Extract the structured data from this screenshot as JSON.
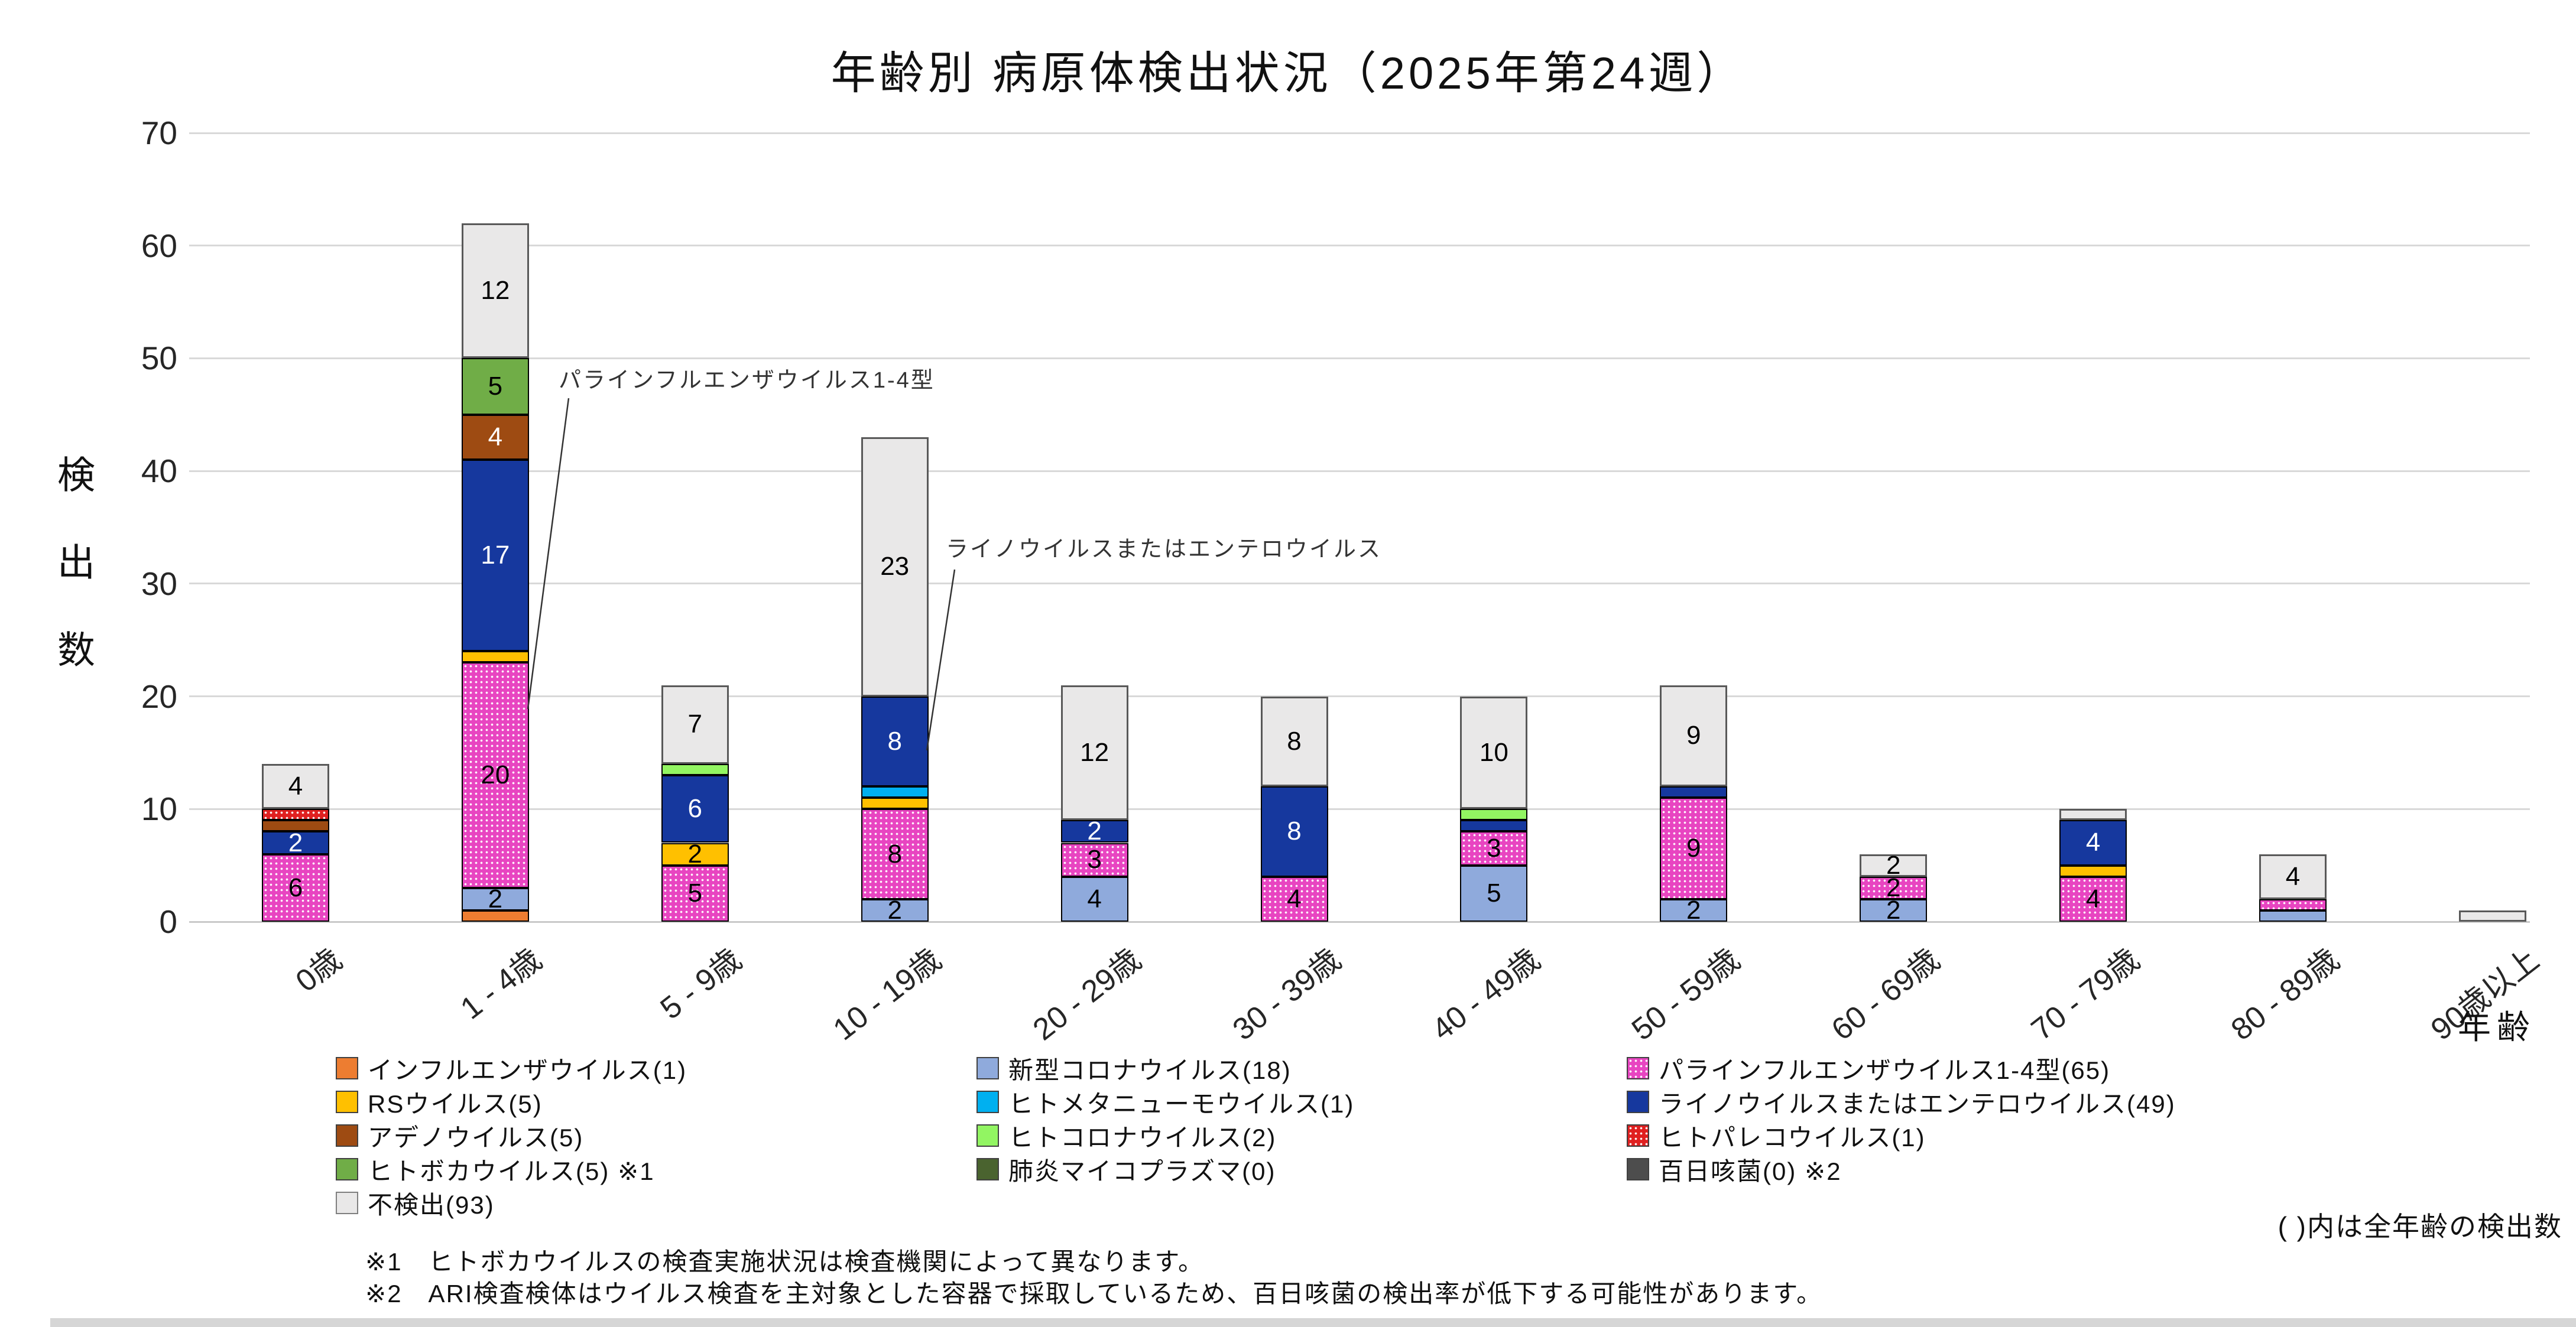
{
  "title": "年齢別 病原体検出状況（2025年第24週）",
  "chart_data": {
    "type": "bar",
    "stacked": true,
    "title": "年齢別 病原体検出状況（2025年第24週）",
    "ylabel": "検出数",
    "xlabel": "年齢",
    "ylim": [
      0,
      70
    ],
    "yticks": [
      0,
      10,
      20,
      30,
      40,
      50,
      60,
      70
    ],
    "grid": true,
    "legend_position": "bottom",
    "categories": [
      "0歳",
      "1 - 4歳",
      "5 - 9歳",
      "10 - 19歳",
      "20 - 29歳",
      "30 - 39歳",
      "40 - 49歳",
      "50 - 59歳",
      "60 - 69歳",
      "70 - 79歳",
      "80 - 89歳",
      "90歳以上"
    ],
    "series": [
      {
        "name": "インフルエンザウイルス",
        "total": 1,
        "legend_label": "インフルエンザウイルス(1)",
        "color": "#ED7D31",
        "border": "#000000",
        "pattern": "none",
        "label_color": "#000000",
        "values": [
          0,
          1,
          0,
          0,
          0,
          0,
          0,
          0,
          0,
          0,
          0,
          0
        ]
      },
      {
        "name": "新型コロナウイルス",
        "total": 18,
        "legend_label": "新型コロナウイルス(18)",
        "color": "#8FAADC",
        "border": "#000000",
        "pattern": "none",
        "label_color": "#000000",
        "values": [
          0,
          2,
          0,
          2,
          4,
          0,
          5,
          2,
          2,
          0,
          1,
          0
        ]
      },
      {
        "name": "パラインフルエンザウイルス1-4型",
        "total": 65,
        "legend_label": "パラインフルエンザウイルス1-4型(65)",
        "color": "#E845C1",
        "border": "#000000",
        "pattern": "dots",
        "label_color": "#000000",
        "values": [
          6,
          20,
          5,
          8,
          3,
          4,
          3,
          9,
          2,
          4,
          1,
          0
        ]
      },
      {
        "name": "RSウイルス",
        "total": 5,
        "legend_label": "RSウイルス(5)",
        "color": "#FFC000",
        "border": "#000000",
        "pattern": "none",
        "label_color": "#000000",
        "values": [
          0,
          1,
          2,
          1,
          0,
          0,
          0,
          0,
          0,
          1,
          0,
          0
        ]
      },
      {
        "name": "ヒトメタニューモウイルス",
        "total": 1,
        "legend_label": "ヒトメタニューモウイルス(1)",
        "color": "#00B0F0",
        "border": "#000000",
        "pattern": "none",
        "label_color": "#000000",
        "values": [
          0,
          0,
          0,
          1,
          0,
          0,
          0,
          0,
          0,
          0,
          0,
          0
        ]
      },
      {
        "name": "ライノウイルスまたはエンテロウイルス",
        "total": 49,
        "legend_label": "ライノウイルスまたはエンテロウイルス(49)",
        "color": "#16389E",
        "border": "#000000",
        "pattern": "none",
        "label_color": "#FFFFFF",
        "values": [
          2,
          17,
          6,
          8,
          2,
          8,
          1,
          1,
          0,
          4,
          0,
          0
        ]
      },
      {
        "name": "アデノウイルス",
        "total": 5,
        "legend_label": "アデノウイルス(5)",
        "color": "#9E4B12",
        "border": "#000000",
        "pattern": "none",
        "label_color": "#FFFFFF",
        "values": [
          1,
          4,
          0,
          0,
          0,
          0,
          0,
          0,
          0,
          0,
          0,
          0
        ]
      },
      {
        "name": "ヒトコロナウイルス",
        "total": 2,
        "legend_label": "ヒトコロナウイルス(2)",
        "color": "#92F562",
        "border": "#000000",
        "pattern": "none",
        "label_color": "#000000",
        "values": [
          0,
          0,
          1,
          0,
          0,
          0,
          1,
          0,
          0,
          0,
          0,
          0
        ]
      },
      {
        "name": "ヒトパレコウイルス",
        "total": 1,
        "legend_label": "ヒトパレコウイルス(1)",
        "color": "#E02020",
        "border": "#000000",
        "pattern": "dots",
        "label_color": "#000000",
        "values": [
          1,
          0,
          0,
          0,
          0,
          0,
          0,
          0,
          0,
          0,
          0,
          0
        ]
      },
      {
        "name": "ヒトボカウイルス",
        "total": 5,
        "legend_label": "ヒトボカウイルス(5) ※1",
        "color": "#70AD47",
        "border": "#000000",
        "pattern": "none",
        "label_color": "#000000",
        "values": [
          0,
          5,
          0,
          0,
          0,
          0,
          0,
          0,
          0,
          0,
          0,
          0
        ]
      },
      {
        "name": "肺炎マイコプラズマ",
        "total": 0,
        "legend_label": "肺炎マイコプラズマ(0)",
        "color": "#4A632F",
        "border": "#000000",
        "pattern": "none",
        "label_color": "#FFFFFF",
        "values": [
          0,
          0,
          0,
          0,
          0,
          0,
          0,
          0,
          0,
          0,
          0,
          0
        ]
      },
      {
        "name": "百日咳菌",
        "total": 0,
        "legend_label": "百日咳菌(0) ※2",
        "color": "#4D4D4D",
        "border": "#000000",
        "pattern": "none",
        "label_color": "#FFFFFF",
        "values": [
          0,
          0,
          0,
          0,
          0,
          0,
          0,
          0,
          0,
          0,
          0,
          0
        ]
      },
      {
        "name": "不検出",
        "total": 93,
        "legend_label": "不検出(93)",
        "color": "#E9E8E8",
        "border": "#595959",
        "border_w": 3,
        "pattern": "none",
        "label_color": "#000000",
        "values": [
          4,
          12,
          7,
          23,
          12,
          8,
          10,
          9,
          2,
          1,
          4,
          1
        ]
      }
    ],
    "legend_columns": [
      [
        0,
        3,
        6,
        9,
        12
      ],
      [
        1,
        4,
        7,
        10
      ],
      [
        2,
        5,
        8,
        11
      ]
    ],
    "category_totals": [
      14,
      62,
      21,
      43,
      21,
      20,
      20,
      21,
      6,
      10,
      6,
      1
    ],
    "annotations": [
      {
        "text": "パラインフルエンザウイルス1-4型",
        "target": "1 - 4歳 パラインフルエンザウイルス1-4型"
      },
      {
        "text": "ライノウイルスまたはエンテロウイルス",
        "target": "10 - 19歳 ライノウイルスまたはエンテロウイルス"
      }
    ],
    "legend_note": "( )内は全年齢の検出数",
    "footnotes": [
      "※1　ヒトボカウイルスの検査実施状況は検査機関によって異なります。",
      "※2　ARI検査検体はウイルス検査を主対象とした容器で採取しているため、百日咳菌の検出率が低下する可能性があります。"
    ]
  }
}
